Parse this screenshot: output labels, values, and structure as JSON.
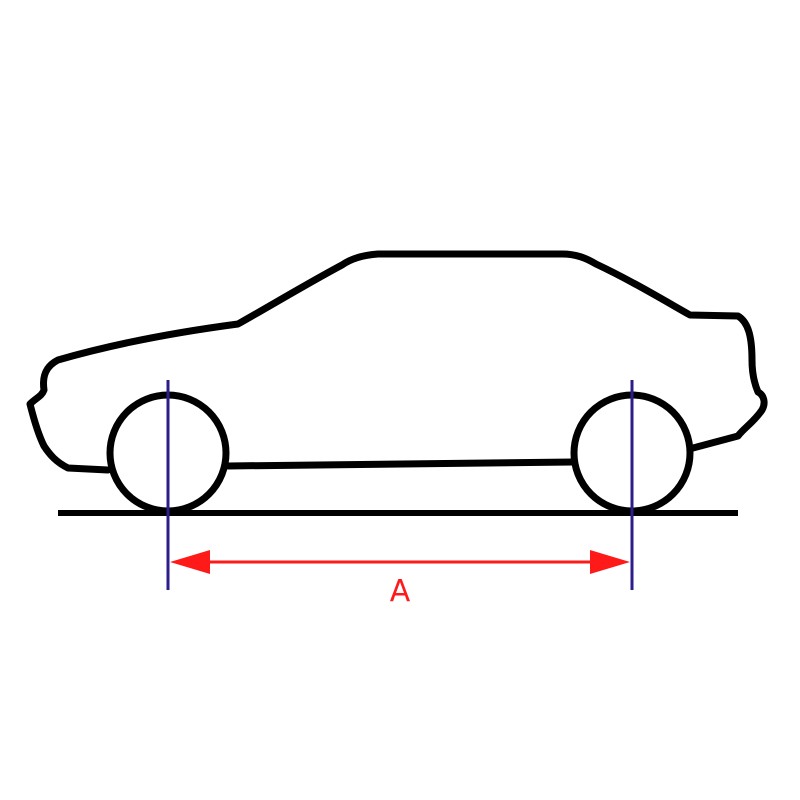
{
  "diagram": {
    "dimension_label": "A",
    "colors": {
      "outline": "#000000",
      "axle_lines": "#2b1e8a",
      "dimension": "#ff1a1a",
      "background": "#ffffff"
    }
  }
}
